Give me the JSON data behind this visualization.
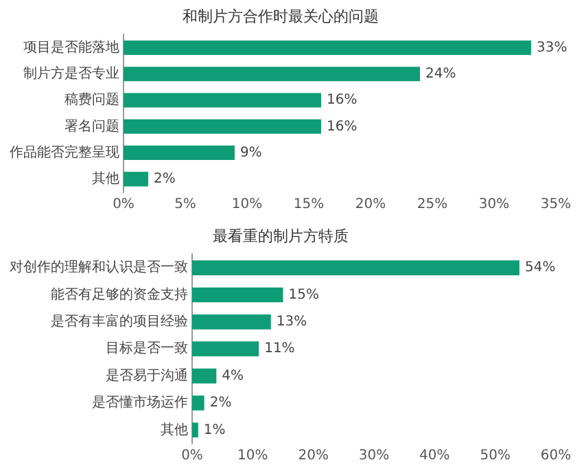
{
  "chart_data": [
    {
      "type": "bar",
      "orientation": "horizontal",
      "title": "和制片方合作时最关心的问题",
      "categories": [
        "项目是否能落地",
        "制片方是否专业",
        "稿费问题",
        "署名问题",
        "作品能否完整呈现",
        "其他"
      ],
      "values": [
        33,
        24,
        16,
        16,
        9,
        2
      ],
      "color": "#0f9d76",
      "value_labels": [
        "33%",
        "24%",
        "16%",
        "16%",
        "9%",
        "2%"
      ],
      "xlim": [
        0,
        35
      ],
      "xticks": [
        {
          "value": 0,
          "label": "0%"
        },
        {
          "value": 5,
          "label": "5%"
        },
        {
          "value": 10,
          "label": "10%"
        },
        {
          "value": 15,
          "label": "15%"
        },
        {
          "value": 20,
          "label": "20%"
        },
        {
          "value": 25,
          "label": "25%"
        },
        {
          "value": 30,
          "label": "30%"
        },
        {
          "value": 35,
          "label": "35%"
        }
      ],
      "grid": false,
      "legend": false
    },
    {
      "type": "bar",
      "orientation": "horizontal",
      "title": "最看重的制片方特质",
      "categories": [
        "对创作的理解和认识是否一致",
        "能否有足够的资金支持",
        "是否有丰富的项目经验",
        "目标是否一致",
        "是否易于沟通",
        "是否懂市场运作",
        "其他"
      ],
      "values": [
        54,
        15,
        13,
        11,
        4,
        2,
        1
      ],
      "color": "#0f9d76",
      "value_labels": [
        "54%",
        "15%",
        "13%",
        "11%",
        "4%",
        "2%",
        "1%"
      ],
      "xlim": [
        0,
        60
      ],
      "xticks": [
        {
          "value": 0,
          "label": "0%"
        },
        {
          "value": 10,
          "label": "10%"
        },
        {
          "value": 20,
          "label": "20%"
        },
        {
          "value": 30,
          "label": "30%"
        },
        {
          "value": 40,
          "label": "40%"
        },
        {
          "value": 50,
          "label": "50%"
        },
        {
          "value": 60,
          "label": "60%"
        }
      ],
      "grid": false,
      "legend": false
    }
  ]
}
